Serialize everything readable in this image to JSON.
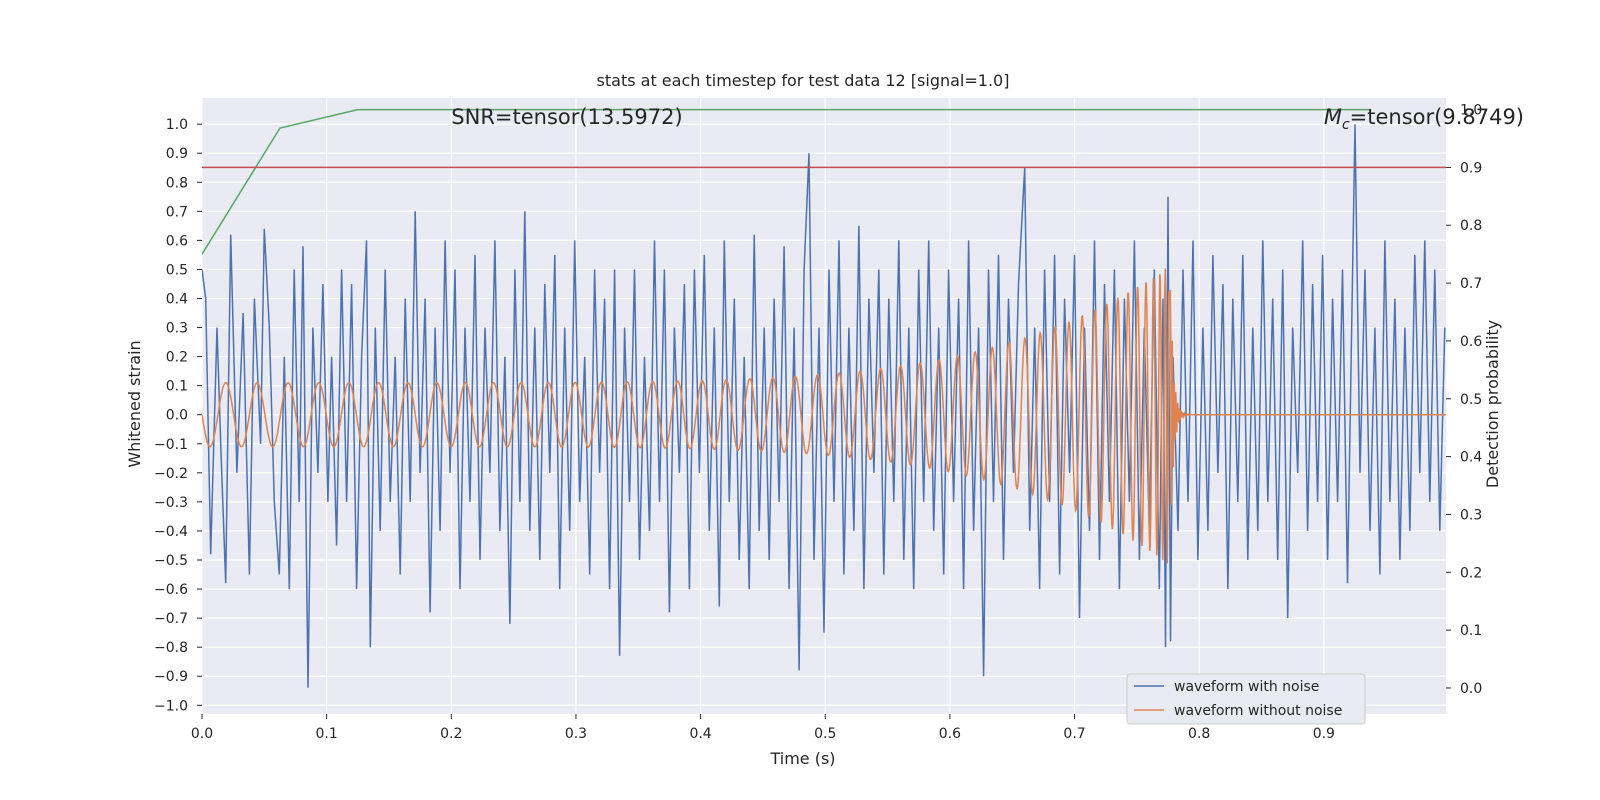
{
  "colors": {
    "figure_bg": "#ffffff",
    "axes_bg": "#eaeaf2",
    "grid": "#ffffff",
    "text": "#262626",
    "noisy": "#4c72b0",
    "clean": "#dd8452",
    "probability": "#55a868",
    "threshold": "#c44e52"
  },
  "chart_data": {
    "type": "line",
    "title": "stats at each timestep for test data 12 [signal=1.0]",
    "xlabel": "Time (s)",
    "ylabel_left": "Whitened strain",
    "ylabel_right": "Detection probability",
    "xlim": [
      0.0,
      0.998
    ],
    "ylim_left": [
      -1.03,
      1.09
    ],
    "ylim_right": [
      -0.045,
      1.02
    ],
    "x_ticks": [
      "0.0",
      "0.1",
      "0.2",
      "0.3",
      "0.4",
      "0.5",
      "0.6",
      "0.7",
      "0.8",
      "0.9"
    ],
    "y_ticks_left": [
      "1.0",
      "0.9",
      "0.8",
      "0.7",
      "0.6",
      "0.5",
      "0.4",
      "0.3",
      "0.2",
      "0.1",
      "0.0",
      "−0.1",
      "−0.2",
      "−0.3",
      "−0.4",
      "−0.5",
      "−0.6",
      "−0.7",
      "−0.8",
      "−0.9",
      "−1.0"
    ],
    "y_ticks_right": [
      "1.0",
      "0.9",
      "0.8",
      "0.7",
      "0.6",
      "0.5",
      "0.4",
      "0.3",
      "0.2",
      "0.1",
      "0.0"
    ],
    "grid": true,
    "legend": {
      "position": "bottom-right",
      "entries": [
        "waveform with noise",
        "waveform without noise"
      ]
    },
    "annotations": {
      "snr": {
        "text": "SNR=tensor(13.5972)",
        "x": 0.2
      },
      "mc": {
        "prefix": "M",
        "subscript": "c",
        "text": "=tensor(9.8749)",
        "x": 0.9
      }
    },
    "series": [
      {
        "name": "waveform with noise",
        "axis": "left",
        "points": [
          [
            0.0,
            0.5
          ],
          [
            0.003,
            0.4
          ],
          [
            0.007,
            -0.48
          ],
          [
            0.012,
            0.3
          ],
          [
            0.015,
            -0.1
          ],
          [
            0.019,
            -0.58
          ],
          [
            0.023,
            0.62
          ],
          [
            0.028,
            -0.2
          ],
          [
            0.033,
            0.35
          ],
          [
            0.038,
            -0.55
          ],
          [
            0.042,
            0.4
          ],
          [
            0.047,
            -0.1
          ],
          [
            0.05,
            0.64
          ],
          [
            0.054,
            0.3
          ],
          [
            0.058,
            -0.3
          ],
          [
            0.062,
            -0.55
          ],
          [
            0.066,
            0.2
          ],
          [
            0.07,
            -0.6
          ],
          [
            0.074,
            0.5
          ],
          [
            0.078,
            -0.3
          ],
          [
            0.081,
            0.58
          ],
          [
            0.084,
            -0.57
          ],
          [
            0.085,
            -0.94
          ],
          [
            0.089,
            0.3
          ],
          [
            0.093,
            -0.2
          ],
          [
            0.097,
            0.45
          ],
          [
            0.101,
            -0.3
          ],
          [
            0.104,
            0.2
          ],
          [
            0.108,
            -0.45
          ],
          [
            0.112,
            0.5
          ],
          [
            0.116,
            -0.3
          ],
          [
            0.12,
            0.45
          ],
          [
            0.124,
            -0.6
          ],
          [
            0.128,
            0.2
          ],
          [
            0.132,
            0.6
          ],
          [
            0.135,
            -0.8
          ],
          [
            0.139,
            0.3
          ],
          [
            0.143,
            -0.4
          ],
          [
            0.147,
            0.5
          ],
          [
            0.151,
            -0.3
          ],
          [
            0.155,
            0.2
          ],
          [
            0.159,
            -0.55
          ],
          [
            0.163,
            0.4
          ],
          [
            0.167,
            -0.3
          ],
          [
            0.171,
            0.7
          ],
          [
            0.175,
            -0.2
          ],
          [
            0.179,
            0.4
          ],
          [
            0.183,
            -0.68
          ],
          [
            0.187,
            0.3
          ],
          [
            0.191,
            -0.4
          ],
          [
            0.195,
            0.6
          ],
          [
            0.199,
            -0.2
          ],
          [
            0.203,
            0.5
          ],
          [
            0.207,
            -0.6
          ],
          [
            0.211,
            0.3
          ],
          [
            0.215,
            -0.3
          ],
          [
            0.219,
            0.55
          ],
          [
            0.223,
            -0.5
          ],
          [
            0.227,
            0.3
          ],
          [
            0.231,
            -0.2
          ],
          [
            0.235,
            0.6
          ],
          [
            0.239,
            -0.4
          ],
          [
            0.243,
            0.2
          ],
          [
            0.247,
            -0.72
          ],
          [
            0.251,
            0.5
          ],
          [
            0.255,
            -0.3
          ],
          [
            0.259,
            0.7
          ],
          [
            0.263,
            -0.4
          ],
          [
            0.267,
            0.3
          ],
          [
            0.271,
            -0.5
          ],
          [
            0.275,
            0.45
          ],
          [
            0.279,
            -0.2
          ],
          [
            0.283,
            0.55
          ],
          [
            0.287,
            -0.6
          ],
          [
            0.291,
            0.3
          ],
          [
            0.295,
            -0.4
          ],
          [
            0.299,
            0.6
          ],
          [
            0.303,
            -0.3
          ],
          [
            0.307,
            0.2
          ],
          [
            0.311,
            -0.55
          ],
          [
            0.315,
            0.5
          ],
          [
            0.319,
            -0.2
          ],
          [
            0.323,
            0.4
          ],
          [
            0.327,
            -0.6
          ],
          [
            0.331,
            0.5
          ],
          [
            0.335,
            -0.83
          ],
          [
            0.339,
            0.3
          ],
          [
            0.343,
            -0.3
          ],
          [
            0.347,
            0.5
          ],
          [
            0.351,
            -0.5
          ],
          [
            0.355,
            0.2
          ],
          [
            0.359,
            -0.4
          ],
          [
            0.363,
            0.6
          ],
          [
            0.367,
            -0.3
          ],
          [
            0.371,
            0.5
          ],
          [
            0.375,
            -0.68
          ],
          [
            0.379,
            0.3
          ],
          [
            0.383,
            -0.2
          ],
          [
            0.387,
            0.45
          ],
          [
            0.391,
            -0.6
          ],
          [
            0.395,
            0.5
          ],
          [
            0.399,
            -0.2
          ],
          [
            0.403,
            0.55
          ],
          [
            0.407,
            -0.4
          ],
          [
            0.411,
            0.3
          ],
          [
            0.415,
            -0.66
          ],
          [
            0.419,
            0.6
          ],
          [
            0.423,
            -0.3
          ],
          [
            0.427,
            0.4
          ],
          [
            0.431,
            -0.5
          ],
          [
            0.435,
            0.2
          ],
          [
            0.439,
            -0.6
          ],
          [
            0.443,
            0.62
          ],
          [
            0.447,
            -0.4
          ],
          [
            0.451,
            0.3
          ],
          [
            0.455,
            -0.5
          ],
          [
            0.459,
            0.4
          ],
          [
            0.463,
            -0.3
          ],
          [
            0.467,
            0.58
          ],
          [
            0.471,
            -0.6
          ],
          [
            0.475,
            0.3
          ],
          [
            0.479,
            -0.88
          ],
          [
            0.483,
            0.5
          ],
          [
            0.487,
            0.9
          ],
          [
            0.491,
            -0.5
          ],
          [
            0.495,
            0.3
          ],
          [
            0.499,
            -0.75
          ],
          [
            0.503,
            0.5
          ],
          [
            0.507,
            -0.3
          ],
          [
            0.511,
            0.6
          ],
          [
            0.515,
            -0.55
          ],
          [
            0.519,
            0.3
          ],
          [
            0.523,
            -0.4
          ],
          [
            0.527,
            0.65
          ],
          [
            0.531,
            -0.6
          ],
          [
            0.535,
            0.4
          ],
          [
            0.539,
            -0.2
          ],
          [
            0.543,
            0.5
          ],
          [
            0.547,
            -0.55
          ],
          [
            0.551,
            0.4
          ],
          [
            0.555,
            -0.3
          ],
          [
            0.559,
            0.6
          ],
          [
            0.563,
            -0.5
          ],
          [
            0.567,
            0.3
          ],
          [
            0.571,
            -0.6
          ],
          [
            0.575,
            0.5
          ],
          [
            0.579,
            -0.3
          ],
          [
            0.583,
            0.6
          ],
          [
            0.587,
            -0.4
          ],
          [
            0.591,
            0.3
          ],
          [
            0.595,
            -0.55
          ],
          [
            0.599,
            0.5
          ],
          [
            0.603,
            -0.3
          ],
          [
            0.607,
            0.4
          ],
          [
            0.611,
            -0.6
          ],
          [
            0.615,
            0.6
          ],
          [
            0.619,
            -0.4
          ],
          [
            0.623,
            0.3
          ],
          [
            0.627,
            -0.9
          ],
          [
            0.631,
            0.5
          ],
          [
            0.635,
            -0.3
          ],
          [
            0.639,
            0.55
          ],
          [
            0.643,
            -0.5
          ],
          [
            0.647,
            0.4
          ],
          [
            0.651,
            -0.2
          ],
          [
            0.655,
            0.45
          ],
          [
            0.66,
            0.85
          ],
          [
            0.664,
            -0.4
          ],
          [
            0.668,
            0.3
          ],
          [
            0.672,
            -0.6
          ],
          [
            0.676,
            0.5
          ],
          [
            0.68,
            -0.3
          ],
          [
            0.684,
            0.55
          ],
          [
            0.688,
            -0.55
          ],
          [
            0.692,
            0.4
          ],
          [
            0.696,
            -0.2
          ],
          [
            0.7,
            0.55
          ],
          [
            0.704,
            -0.7
          ],
          [
            0.708,
            0.3
          ],
          [
            0.712,
            -0.4
          ],
          [
            0.716,
            0.6
          ],
          [
            0.72,
            -0.5
          ],
          [
            0.724,
            0.45
          ],
          [
            0.728,
            -0.3
          ],
          [
            0.732,
            0.5
          ],
          [
            0.736,
            -0.6
          ],
          [
            0.74,
            0.4
          ],
          [
            0.744,
            -0.3
          ],
          [
            0.748,
            0.6
          ],
          [
            0.752,
            -0.5
          ],
          [
            0.756,
            0.3
          ],
          [
            0.76,
            -0.4
          ],
          [
            0.764,
            0.5
          ],
          [
            0.768,
            -0.6
          ],
          [
            0.771,
            0.4
          ],
          [
            0.773,
            -0.8
          ],
          [
            0.775,
            0.75
          ],
          [
            0.777,
            -0.78
          ],
          [
            0.779,
            0.2
          ],
          [
            0.783,
            -0.4
          ],
          [
            0.787,
            0.5
          ],
          [
            0.791,
            -0.3
          ],
          [
            0.795,
            0.6
          ],
          [
            0.799,
            -0.5
          ],
          [
            0.803,
            0.3
          ],
          [
            0.807,
            -0.4
          ],
          [
            0.811,
            0.55
          ],
          [
            0.815,
            -0.2
          ],
          [
            0.819,
            0.45
          ],
          [
            0.823,
            -0.6
          ],
          [
            0.827,
            0.4
          ],
          [
            0.831,
            -0.3
          ],
          [
            0.835,
            0.55
          ],
          [
            0.839,
            -0.5
          ],
          [
            0.843,
            0.3
          ],
          [
            0.847,
            -0.4
          ],
          [
            0.851,
            0.6
          ],
          [
            0.855,
            -0.3
          ],
          [
            0.859,
            0.4
          ],
          [
            0.863,
            -0.5
          ],
          [
            0.867,
            0.5
          ],
          [
            0.871,
            -0.7
          ],
          [
            0.875,
            0.3
          ],
          [
            0.879,
            -0.2
          ],
          [
            0.883,
            0.6
          ],
          [
            0.887,
            -0.4
          ],
          [
            0.891,
            0.45
          ],
          [
            0.895,
            -0.3
          ],
          [
            0.899,
            0.55
          ],
          [
            0.903,
            -0.5
          ],
          [
            0.907,
            0.4
          ],
          [
            0.911,
            -0.3
          ],
          [
            0.915,
            0.5
          ],
          [
            0.919,
            -0.58
          ],
          [
            0.925,
            1.0
          ],
          [
            0.929,
            -0.2
          ],
          [
            0.933,
            0.5
          ],
          [
            0.937,
            -0.4
          ],
          [
            0.941,
            0.3
          ],
          [
            0.945,
            -0.55
          ],
          [
            0.949,
            0.6
          ],
          [
            0.953,
            -0.3
          ],
          [
            0.957,
            0.4
          ],
          [
            0.961,
            -0.5
          ],
          [
            0.965,
            0.3
          ],
          [
            0.969,
            -0.4
          ],
          [
            0.973,
            0.55
          ],
          [
            0.977,
            -0.2
          ],
          [
            0.981,
            0.6
          ],
          [
            0.985,
            -0.3
          ],
          [
            0.989,
            0.5
          ],
          [
            0.993,
            -0.4
          ],
          [
            0.997,
            0.3
          ]
        ]
      },
      {
        "name": "waveform without noise",
        "axis": "left",
        "model": {
          "amplitude_start": 0.11,
          "amplitude_peak": 0.52,
          "frequency_start_hz": 43,
          "t_merger": 0.777,
          "phase": 1.57,
          "post_merger_level": 0.0
        }
      },
      {
        "name": "detection probability",
        "axis": "right",
        "points": [
          [
            0.0,
            0.75
          ],
          [
            0.0625,
            0.968
          ],
          [
            0.125,
            1.0
          ],
          [
            0.9375,
            1.0
          ]
        ]
      },
      {
        "name": "threshold",
        "axis": "right",
        "points": [
          [
            0.0,
            0.9
          ],
          [
            0.998,
            0.9
          ]
        ]
      }
    ]
  }
}
